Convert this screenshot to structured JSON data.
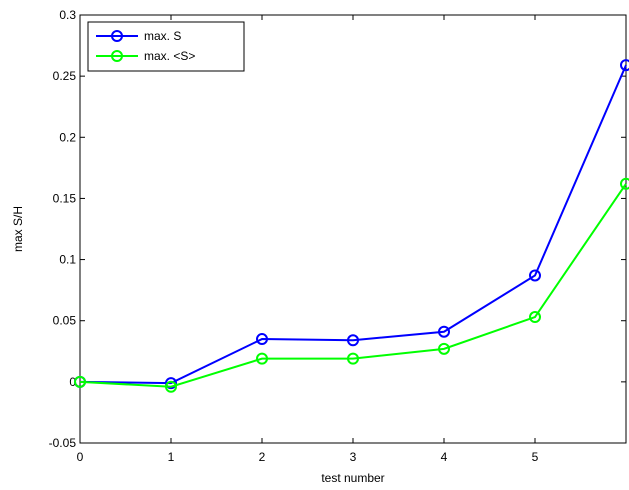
{
  "chart_data": {
    "type": "line",
    "x": [
      0,
      1,
      2,
      3,
      4,
      5,
      6
    ],
    "series": [
      {
        "name": "max. S",
        "color": "#0000ff",
        "values": [
          0,
          -0.001,
          0.035,
          0.034,
          0.041,
          0.087,
          0.259
        ]
      },
      {
        "name": "max. <S>",
        "color": "#00ff00",
        "values": [
          0,
          -0.004,
          0.019,
          0.019,
          0.027,
          0.053,
          0.162
        ]
      }
    ],
    "xlabel": "test number",
    "ylabel": "max S/H",
    "xlim": [
      0,
      6
    ],
    "xticks": [
      0,
      1,
      2,
      3,
      4,
      5
    ],
    "ylim": [
      -0.05,
      0.3
    ],
    "yticks": [
      -0.05,
      0,
      0.05,
      0.1,
      0.15,
      0.2,
      0.25,
      0.3
    ],
    "legend": "upper-left",
    "grid": false
  }
}
